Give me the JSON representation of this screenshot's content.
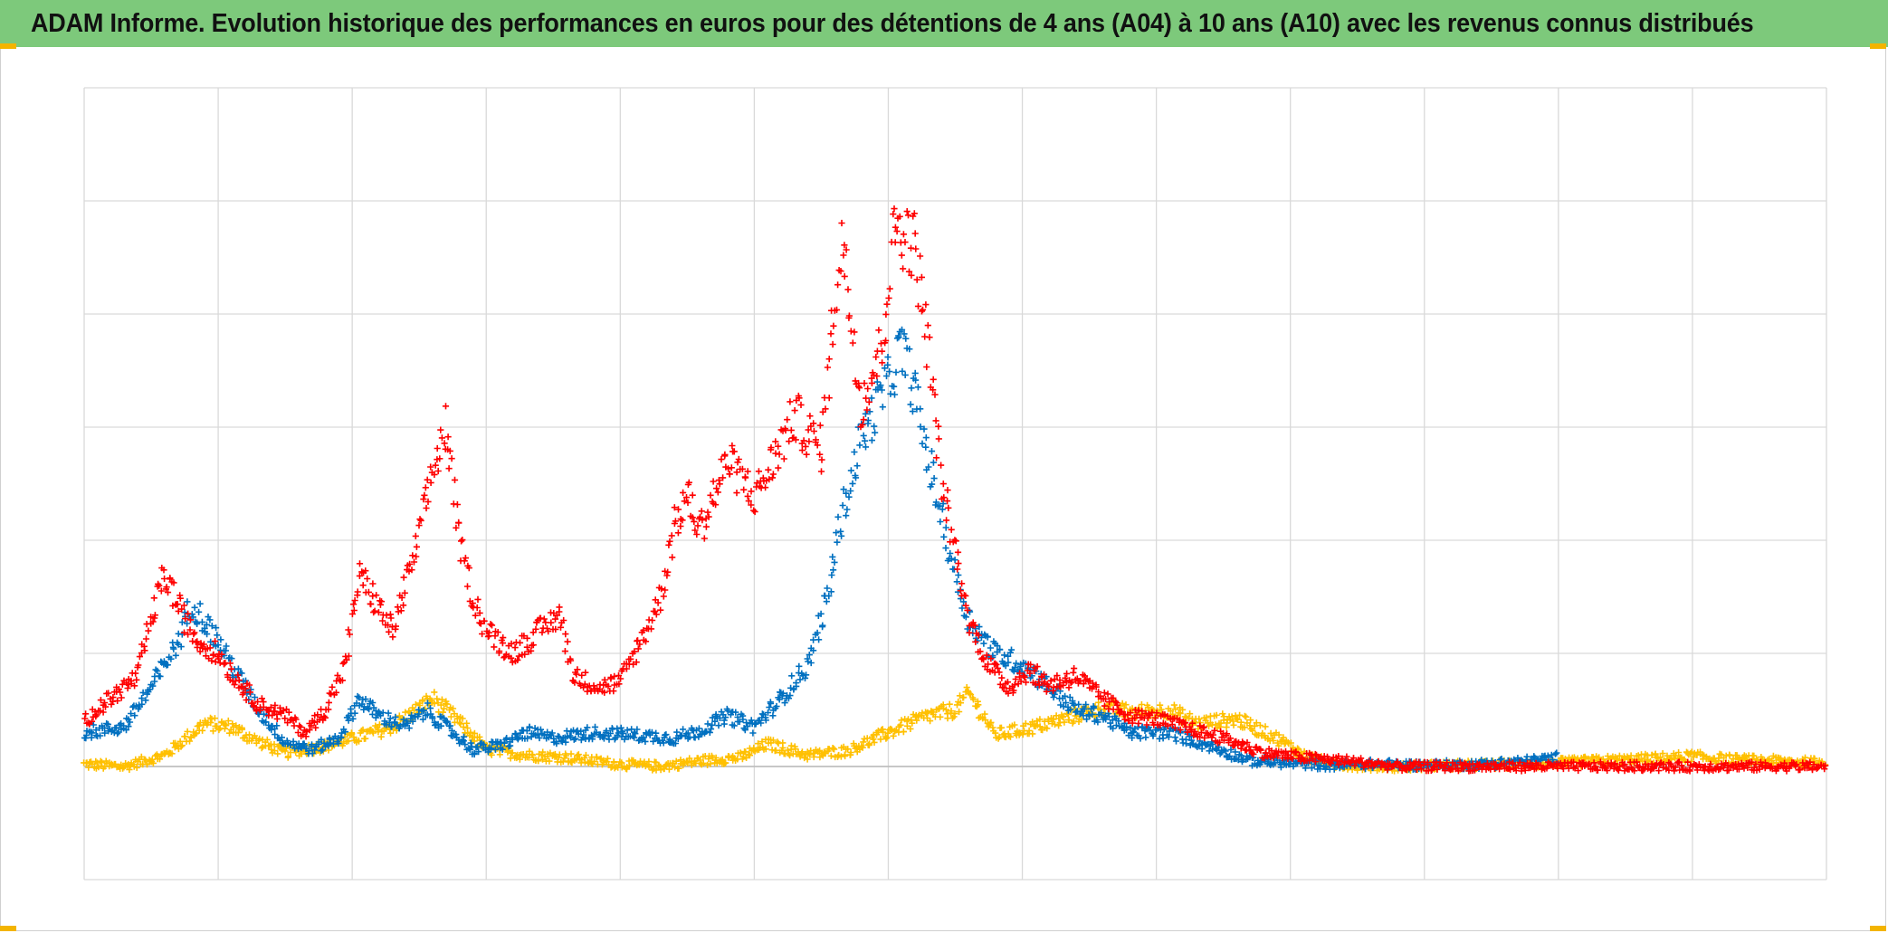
{
  "window": {
    "title": "ADAM Informe. Evolution historique des performances en euros pour des détentions de 4 ans (A04) à 10 ans (A10) avec les revenus connus distribués"
  },
  "colors": {
    "title_background": "#7dc97b",
    "accent_corner": "#f3b400",
    "gridline": "#d9d9d9"
  },
  "chart_data": {
    "type": "scatter",
    "title": "ADAM Informe. Evolution historique des performances en euros pour des détentions de 4 ans (A04) à 10 ans (A10) avec les revenus connus distribués",
    "xlabel": "",
    "ylabel": "",
    "tick_labels_visible": false,
    "grid": true,
    "legend": "none",
    "marker": "plus",
    "x_domain": [
      0,
      13
    ],
    "y_domain": [
      -1,
      6
    ],
    "x_gridlines": [
      0,
      1,
      2,
      3,
      4,
      5,
      6,
      7,
      8,
      9,
      10,
      11,
      12,
      13
    ],
    "y_gridlines": [
      -1,
      0,
      1,
      2,
      3,
      4,
      5,
      6
    ],
    "series": [
      {
        "color": "#ffc000",
        "points": [
          [
            0,
            0.02
          ],
          [
            0.3,
            0.0
          ],
          [
            0.6,
            0.1
          ],
          [
            0.9,
            0.38
          ],
          [
            1.1,
            0.35
          ],
          [
            1.3,
            0.22
          ],
          [
            1.5,
            0.12
          ],
          [
            1.8,
            0.18
          ],
          [
            2.1,
            0.28
          ],
          [
            2.3,
            0.35
          ],
          [
            2.6,
            0.6
          ],
          [
            2.75,
            0.45
          ],
          [
            3.0,
            0.15
          ],
          [
            3.3,
            0.1
          ],
          [
            3.6,
            0.08
          ],
          [
            4.0,
            0.02
          ],
          [
            4.3,
            0.0
          ],
          [
            4.6,
            0.05
          ],
          [
            4.9,
            0.08
          ],
          [
            5.1,
            0.2
          ],
          [
            5.4,
            0.1
          ],
          [
            5.7,
            0.14
          ],
          [
            6.0,
            0.3
          ],
          [
            6.3,
            0.45
          ],
          [
            6.5,
            0.5
          ],
          [
            6.6,
            0.65
          ],
          [
            6.8,
            0.28
          ],
          [
            7.1,
            0.35
          ],
          [
            7.4,
            0.45
          ],
          [
            7.6,
            0.52
          ],
          [
            7.8,
            0.48
          ],
          [
            8.1,
            0.5
          ],
          [
            8.3,
            0.38
          ],
          [
            8.6,
            0.42
          ],
          [
            8.9,
            0.25
          ],
          [
            9.1,
            0.1
          ],
          [
            9.3,
            0.02
          ],
          [
            9.6,
            0.0
          ],
          [
            9.9,
            0.0
          ],
          [
            10.3,
            0.01
          ],
          [
            10.8,
            0.02
          ],
          [
            11.3,
            0.05
          ],
          [
            11.7,
            0.07
          ],
          [
            12.0,
            0.09
          ],
          [
            12.3,
            0.06
          ],
          [
            12.6,
            0.05
          ],
          [
            13.0,
            0.03
          ]
        ]
      },
      {
        "color": "#0070c0",
        "points": [
          [
            0,
            0.3
          ],
          [
            0.3,
            0.35
          ],
          [
            0.5,
            0.7
          ],
          [
            0.7,
            1.1
          ],
          [
            0.8,
            1.45
          ],
          [
            0.95,
            1.2
          ],
          [
            1.1,
            0.9
          ],
          [
            1.3,
            0.5
          ],
          [
            1.5,
            0.22
          ],
          [
            1.7,
            0.15
          ],
          [
            1.9,
            0.25
          ],
          [
            2.05,
            0.6
          ],
          [
            2.2,
            0.45
          ],
          [
            2.4,
            0.35
          ],
          [
            2.55,
            0.5
          ],
          [
            2.7,
            0.35
          ],
          [
            2.9,
            0.15
          ],
          [
            3.1,
            0.18
          ],
          [
            3.3,
            0.3
          ],
          [
            3.5,
            0.25
          ],
          [
            3.8,
            0.3
          ],
          [
            4.1,
            0.28
          ],
          [
            4.4,
            0.25
          ],
          [
            4.6,
            0.32
          ],
          [
            4.8,
            0.45
          ],
          [
            5.0,
            0.35
          ],
          [
            5.2,
            0.6
          ],
          [
            5.4,
            0.9
          ],
          [
            5.55,
            1.5
          ],
          [
            5.65,
            2.2
          ],
          [
            5.8,
            2.9
          ],
          [
            6.0,
            3.4
          ],
          [
            6.1,
            3.7
          ],
          [
            6.2,
            3.3
          ],
          [
            6.3,
            2.7
          ],
          [
            6.4,
            2.2
          ],
          [
            6.5,
            1.7
          ],
          [
            6.6,
            1.3
          ],
          [
            6.8,
            1.0
          ],
          [
            7.0,
            0.9
          ],
          [
            7.2,
            0.7
          ],
          [
            7.4,
            0.5
          ],
          [
            7.6,
            0.45
          ],
          [
            7.8,
            0.3
          ],
          [
            8.1,
            0.3
          ],
          [
            8.4,
            0.18
          ],
          [
            8.7,
            0.05
          ],
          [
            9.0,
            0.03
          ],
          [
            9.3,
            0.01
          ],
          [
            9.6,
            0.02
          ],
          [
            10.0,
            0.01
          ],
          [
            10.4,
            0.02
          ],
          [
            10.8,
            0.05
          ],
          [
            11.0,
            0.08
          ]
        ]
      },
      {
        "color": "#ff0000",
        "points": [
          [
            0,
            0.4
          ],
          [
            0.2,
            0.6
          ],
          [
            0.4,
            0.8
          ],
          [
            0.5,
            1.3
          ],
          [
            0.6,
            1.7
          ],
          [
            0.75,
            1.3
          ],
          [
            0.85,
            1.1
          ],
          [
            1.0,
            1.0
          ],
          [
            1.15,
            0.75
          ],
          [
            1.3,
            0.55
          ],
          [
            1.5,
            0.45
          ],
          [
            1.65,
            0.3
          ],
          [
            1.8,
            0.5
          ],
          [
            1.95,
            0.9
          ],
          [
            2.05,
            1.7
          ],
          [
            2.2,
            1.4
          ],
          [
            2.3,
            1.2
          ],
          [
            2.45,
            1.8
          ],
          [
            2.6,
            2.6
          ],
          [
            2.7,
            3.0
          ],
          [
            2.8,
            2.0
          ],
          [
            2.9,
            1.5
          ],
          [
            3.0,
            1.2
          ],
          [
            3.2,
            1.0
          ],
          [
            3.4,
            1.2
          ],
          [
            3.55,
            1.35
          ],
          [
            3.65,
            0.8
          ],
          [
            3.85,
            0.7
          ],
          [
            4.0,
            0.75
          ],
          [
            4.15,
            1.1
          ],
          [
            4.3,
            1.5
          ],
          [
            4.4,
            2.1
          ],
          [
            4.5,
            2.4
          ],
          [
            4.6,
            2.1
          ],
          [
            4.8,
            2.7
          ],
          [
            5.0,
            2.4
          ],
          [
            5.1,
            2.6
          ],
          [
            5.3,
            3.1
          ],
          [
            5.5,
            2.8
          ],
          [
            5.65,
            4.7
          ],
          [
            5.8,
            3.2
          ],
          [
            5.95,
            3.7
          ],
          [
            6.05,
            4.8
          ],
          [
            6.2,
            4.6
          ],
          [
            6.3,
            3.7
          ],
          [
            6.4,
            2.5
          ],
          [
            6.5,
            1.9
          ],
          [
            6.6,
            1.3
          ],
          [
            6.75,
            0.9
          ],
          [
            6.9,
            0.7
          ],
          [
            7.05,
            0.85
          ],
          [
            7.2,
            0.72
          ],
          [
            7.4,
            0.8
          ],
          [
            7.6,
            0.6
          ],
          [
            7.8,
            0.45
          ],
          [
            8.0,
            0.42
          ],
          [
            8.2,
            0.35
          ],
          [
            8.5,
            0.25
          ],
          [
            8.8,
            0.12
          ],
          [
            9.1,
            0.08
          ],
          [
            9.3,
            0.06
          ],
          [
            9.5,
            0.04
          ],
          [
            9.8,
            0.0
          ],
          [
            10.5,
            0.0
          ],
          [
            11.5,
            0.0
          ],
          [
            12.5,
            0.0
          ],
          [
            13.0,
            0.0
          ]
        ]
      }
    ]
  }
}
